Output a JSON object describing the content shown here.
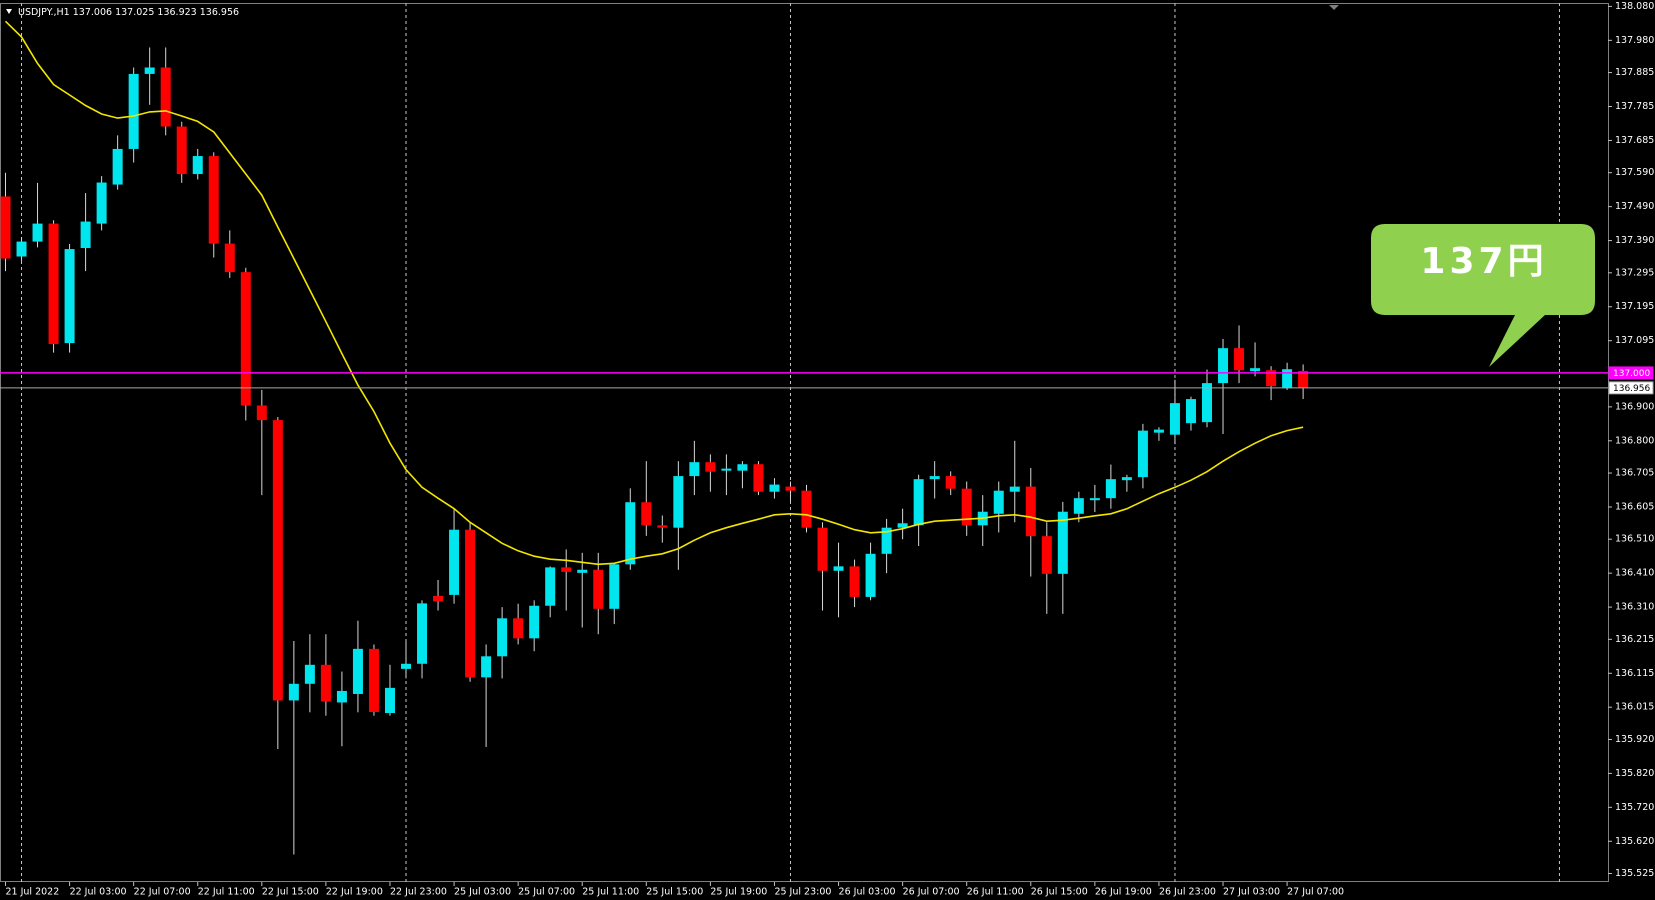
{
  "chart_data": {
    "type": "candlestick",
    "symbol": "USDJPY.,H1",
    "categories": [
      "21 Jul 2022",
      null,
      null,
      null,
      "22 Jul 03:00",
      null,
      null,
      null,
      "22 Jul 07:00",
      null,
      null,
      null,
      "22 Jul 11:00",
      null,
      null,
      null,
      "22 Jul 15:00",
      null,
      null,
      null,
      "22 Jul 19:00",
      null,
      null,
      null,
      "22 Jul 23:00",
      null,
      null,
      null,
      "25 Jul 03:00",
      null,
      null,
      null,
      "25 Jul 07:00",
      null,
      null,
      null,
      "25 Jul 11:00",
      null,
      null,
      null,
      "25 Jul 15:00",
      null,
      null,
      null,
      "25 Jul 19:00",
      null,
      null,
      null,
      "25 Jul 23:00",
      null,
      null,
      null,
      "26 Jul 03:00",
      null,
      null,
      null,
      "26 Jul 07:00",
      null,
      null,
      null,
      "26 Jul 11:00",
      null,
      null,
      null,
      "26 Jul 15:00",
      null,
      null,
      null,
      "26 Jul 19:00",
      null,
      null,
      null,
      "26 Jul 23:00",
      null,
      null,
      null,
      "27 Jul 03:00",
      null,
      null,
      null,
      "27 Jul 07:00",
      null
    ],
    "open": [
      137.52,
      137.343,
      137.387,
      137.44,
      137.088,
      137.368,
      137.44,
      137.555,
      137.66,
      137.881,
      137.9,
      137.726,
      137.586,
      137.639,
      137.381,
      137.297,
      136.904,
      136.861,
      136.035,
      136.084,
      136.14,
      136.029,
      136.054,
      136.187,
      135.998,
      136.128,
      136.143,
      136.343,
      136.346,
      136.538,
      136.103,
      136.165,
      136.277,
      136.218,
      136.314,
      136.427,
      136.411,
      136.42,
      136.305,
      136.436,
      136.619,
      136.551,
      136.544,
      136.696,
      136.737,
      136.712,
      136.712,
      136.731,
      136.65,
      136.665,
      136.653,
      136.544,
      136.417,
      136.43,
      136.34,
      136.467,
      136.544,
      136.551,
      136.687,
      136.696,
      136.659,
      136.551,
      136.585,
      136.65,
      136.665,
      136.519,
      136.408,
      136.585,
      136.625,
      136.631,
      136.684,
      136.693,
      136.824,
      136.818,
      136.852,
      136.855,
      136.97,
      137.073,
      137.005,
      137.008,
      136.955,
      137.006
    ],
    "high": [
      137.59,
      137.4,
      137.56,
      137.45,
      137.38,
      137.53,
      137.58,
      137.7,
      137.9,
      137.959,
      137.959,
      137.74,
      137.66,
      137.65,
      137.42,
      137.31,
      136.95,
      136.87,
      136.21,
      136.23,
      136.23,
      136.12,
      136.27,
      136.2,
      136.14,
      136.21,
      136.33,
      136.39,
      136.6,
      136.56,
      136.2,
      136.31,
      136.32,
      136.33,
      136.43,
      136.48,
      136.47,
      136.47,
      136.44,
      136.66,
      136.74,
      136.58,
      136.74,
      136.8,
      136.76,
      136.76,
      136.74,
      136.74,
      136.69,
      136.68,
      136.67,
      136.56,
      136.5,
      136.45,
      136.5,
      136.57,
      136.6,
      136.7,
      136.74,
      136.71,
      136.68,
      136.64,
      136.68,
      136.8,
      136.72,
      136.56,
      136.62,
      136.65,
      136.67,
      136.73,
      136.7,
      136.85,
      136.84,
      136.98,
      136.93,
      137.01,
      137.1,
      137.14,
      137.09,
      137.02,
      137.03,
      137.025
    ],
    "low": [
      137.3,
      137.33,
      137.37,
      137.06,
      137.06,
      137.3,
      137.42,
      137.54,
      137.62,
      137.79,
      137.7,
      137.56,
      137.57,
      137.34,
      137.28,
      136.86,
      136.64,
      135.892,
      135.581,
      136.0,
      135.99,
      135.9,
      136.0,
      135.99,
      135.99,
      136.1,
      136.1,
      136.3,
      136.32,
      136.09,
      135.898,
      136.1,
      136.2,
      136.18,
      136.28,
      136.3,
      136.25,
      136.23,
      136.26,
      136.42,
      136.52,
      136.5,
      136.42,
      136.64,
      136.65,
      136.64,
      136.66,
      136.64,
      136.63,
      136.62,
      136.53,
      136.3,
      136.28,
      136.31,
      136.33,
      136.41,
      136.51,
      136.49,
      136.63,
      136.64,
      136.52,
      136.49,
      136.53,
      136.56,
      136.4,
      136.29,
      136.29,
      136.56,
      136.59,
      136.6,
      136.65,
      136.66,
      136.8,
      136.79,
      136.83,
      136.84,
      136.82,
      136.97,
      136.99,
      136.92,
      136.95,
      136.923
    ],
    "close": [
      137.337,
      137.387,
      137.44,
      137.085,
      137.365,
      137.446,
      137.561,
      137.66,
      137.881,
      137.9,
      137.726,
      137.586,
      137.639,
      137.381,
      137.297,
      136.904,
      136.861,
      136.035,
      136.084,
      136.14,
      136.032,
      136.063,
      136.187,
      136.001,
      136.072,
      136.143,
      136.321,
      136.327,
      136.538,
      136.103,
      136.165,
      136.277,
      136.218,
      136.314,
      136.427,
      136.414,
      136.42,
      136.305,
      136.436,
      136.619,
      136.551,
      136.544,
      136.696,
      136.737,
      136.709,
      136.718,
      136.731,
      136.65,
      136.671,
      136.653,
      136.544,
      136.417,
      136.43,
      136.34,
      136.467,
      136.544,
      136.557,
      136.687,
      136.696,
      136.659,
      136.551,
      136.591,
      136.653,
      136.665,
      136.519,
      136.408,
      136.591,
      136.631,
      136.631,
      136.687,
      136.693,
      136.83,
      136.833,
      136.911,
      136.923,
      136.97,
      137.073,
      137.008,
      137.014,
      136.961,
      137.011,
      136.956
    ],
    "up_color": "#00e5ee",
    "down_color": "#ff0000",
    "wick_color": "#d8d8d8",
    "overlays": [
      {
        "type": "line",
        "color": "#f2e600",
        "values": [
          138.036,
          137.99,
          137.912,
          137.85,
          137.819,
          137.788,
          137.763,
          137.751,
          137.757,
          137.769,
          137.772,
          137.757,
          137.741,
          137.71,
          137.648,
          137.586,
          137.524,
          137.43,
          137.337,
          137.244,
          137.151,
          137.057,
          136.964,
          136.886,
          136.793,
          136.715,
          136.663,
          136.631,
          136.6,
          136.56,
          136.529,
          136.498,
          136.476,
          136.46,
          136.451,
          136.448,
          136.442,
          136.436,
          136.439,
          136.451,
          136.46,
          136.467,
          136.482,
          136.507,
          136.529,
          136.544,
          136.557,
          136.569,
          136.582,
          136.585,
          136.582,
          136.569,
          136.554,
          136.538,
          136.529,
          136.532,
          136.541,
          136.554,
          136.563,
          136.566,
          136.569,
          136.572,
          136.579,
          136.582,
          136.575,
          136.563,
          136.566,
          136.572,
          136.579,
          136.585,
          136.6,
          136.622,
          136.644,
          136.663,
          136.684,
          136.709,
          136.74,
          136.768,
          136.793,
          136.815,
          136.83,
          136.84
        ]
      }
    ],
    "hlines": [
      {
        "value": 137,
        "label": "137.000",
        "color": "#ff00ff"
      },
      {
        "value": 136.956,
        "label": "136.956",
        "color": "#a8a8a8"
      }
    ],
    "ylim": [
      135.5,
      138.09
    ],
    "yticks": [
      {
        "value": 138.08,
        "label": "138.080"
      },
      {
        "value": 137.98,
        "label": "137.980"
      },
      137.885,
      137.785,
      137.685,
      {
        "value": 137.59,
        "label": "137.590"
      },
      {
        "value": 137.49,
        "label": "137.490"
      },
      {
        "value": 137.39,
        "label": "137.390"
      },
      137.295,
      137.195,
      137.095,
      {
        "value": 136.9,
        "label": "136.900"
      },
      {
        "value": 136.8,
        "label": "136.800"
      },
      136.705,
      136.605,
      {
        "value": 136.51,
        "label": "136.510"
      },
      {
        "value": 136.41,
        "label": "136.410"
      },
      {
        "value": 136.31,
        "label": "136.310"
      },
      136.215,
      136.115,
      136.015,
      {
        "value": 135.92,
        "label": "135.920"
      },
      {
        "value": 135.82,
        "label": "135.820"
      },
      {
        "value": 135.72,
        "label": "135.720"
      },
      {
        "value": 135.62,
        "label": "135.620"
      },
      135.525
    ],
    "grid": false,
    "annotation": "137円"
  }
}
